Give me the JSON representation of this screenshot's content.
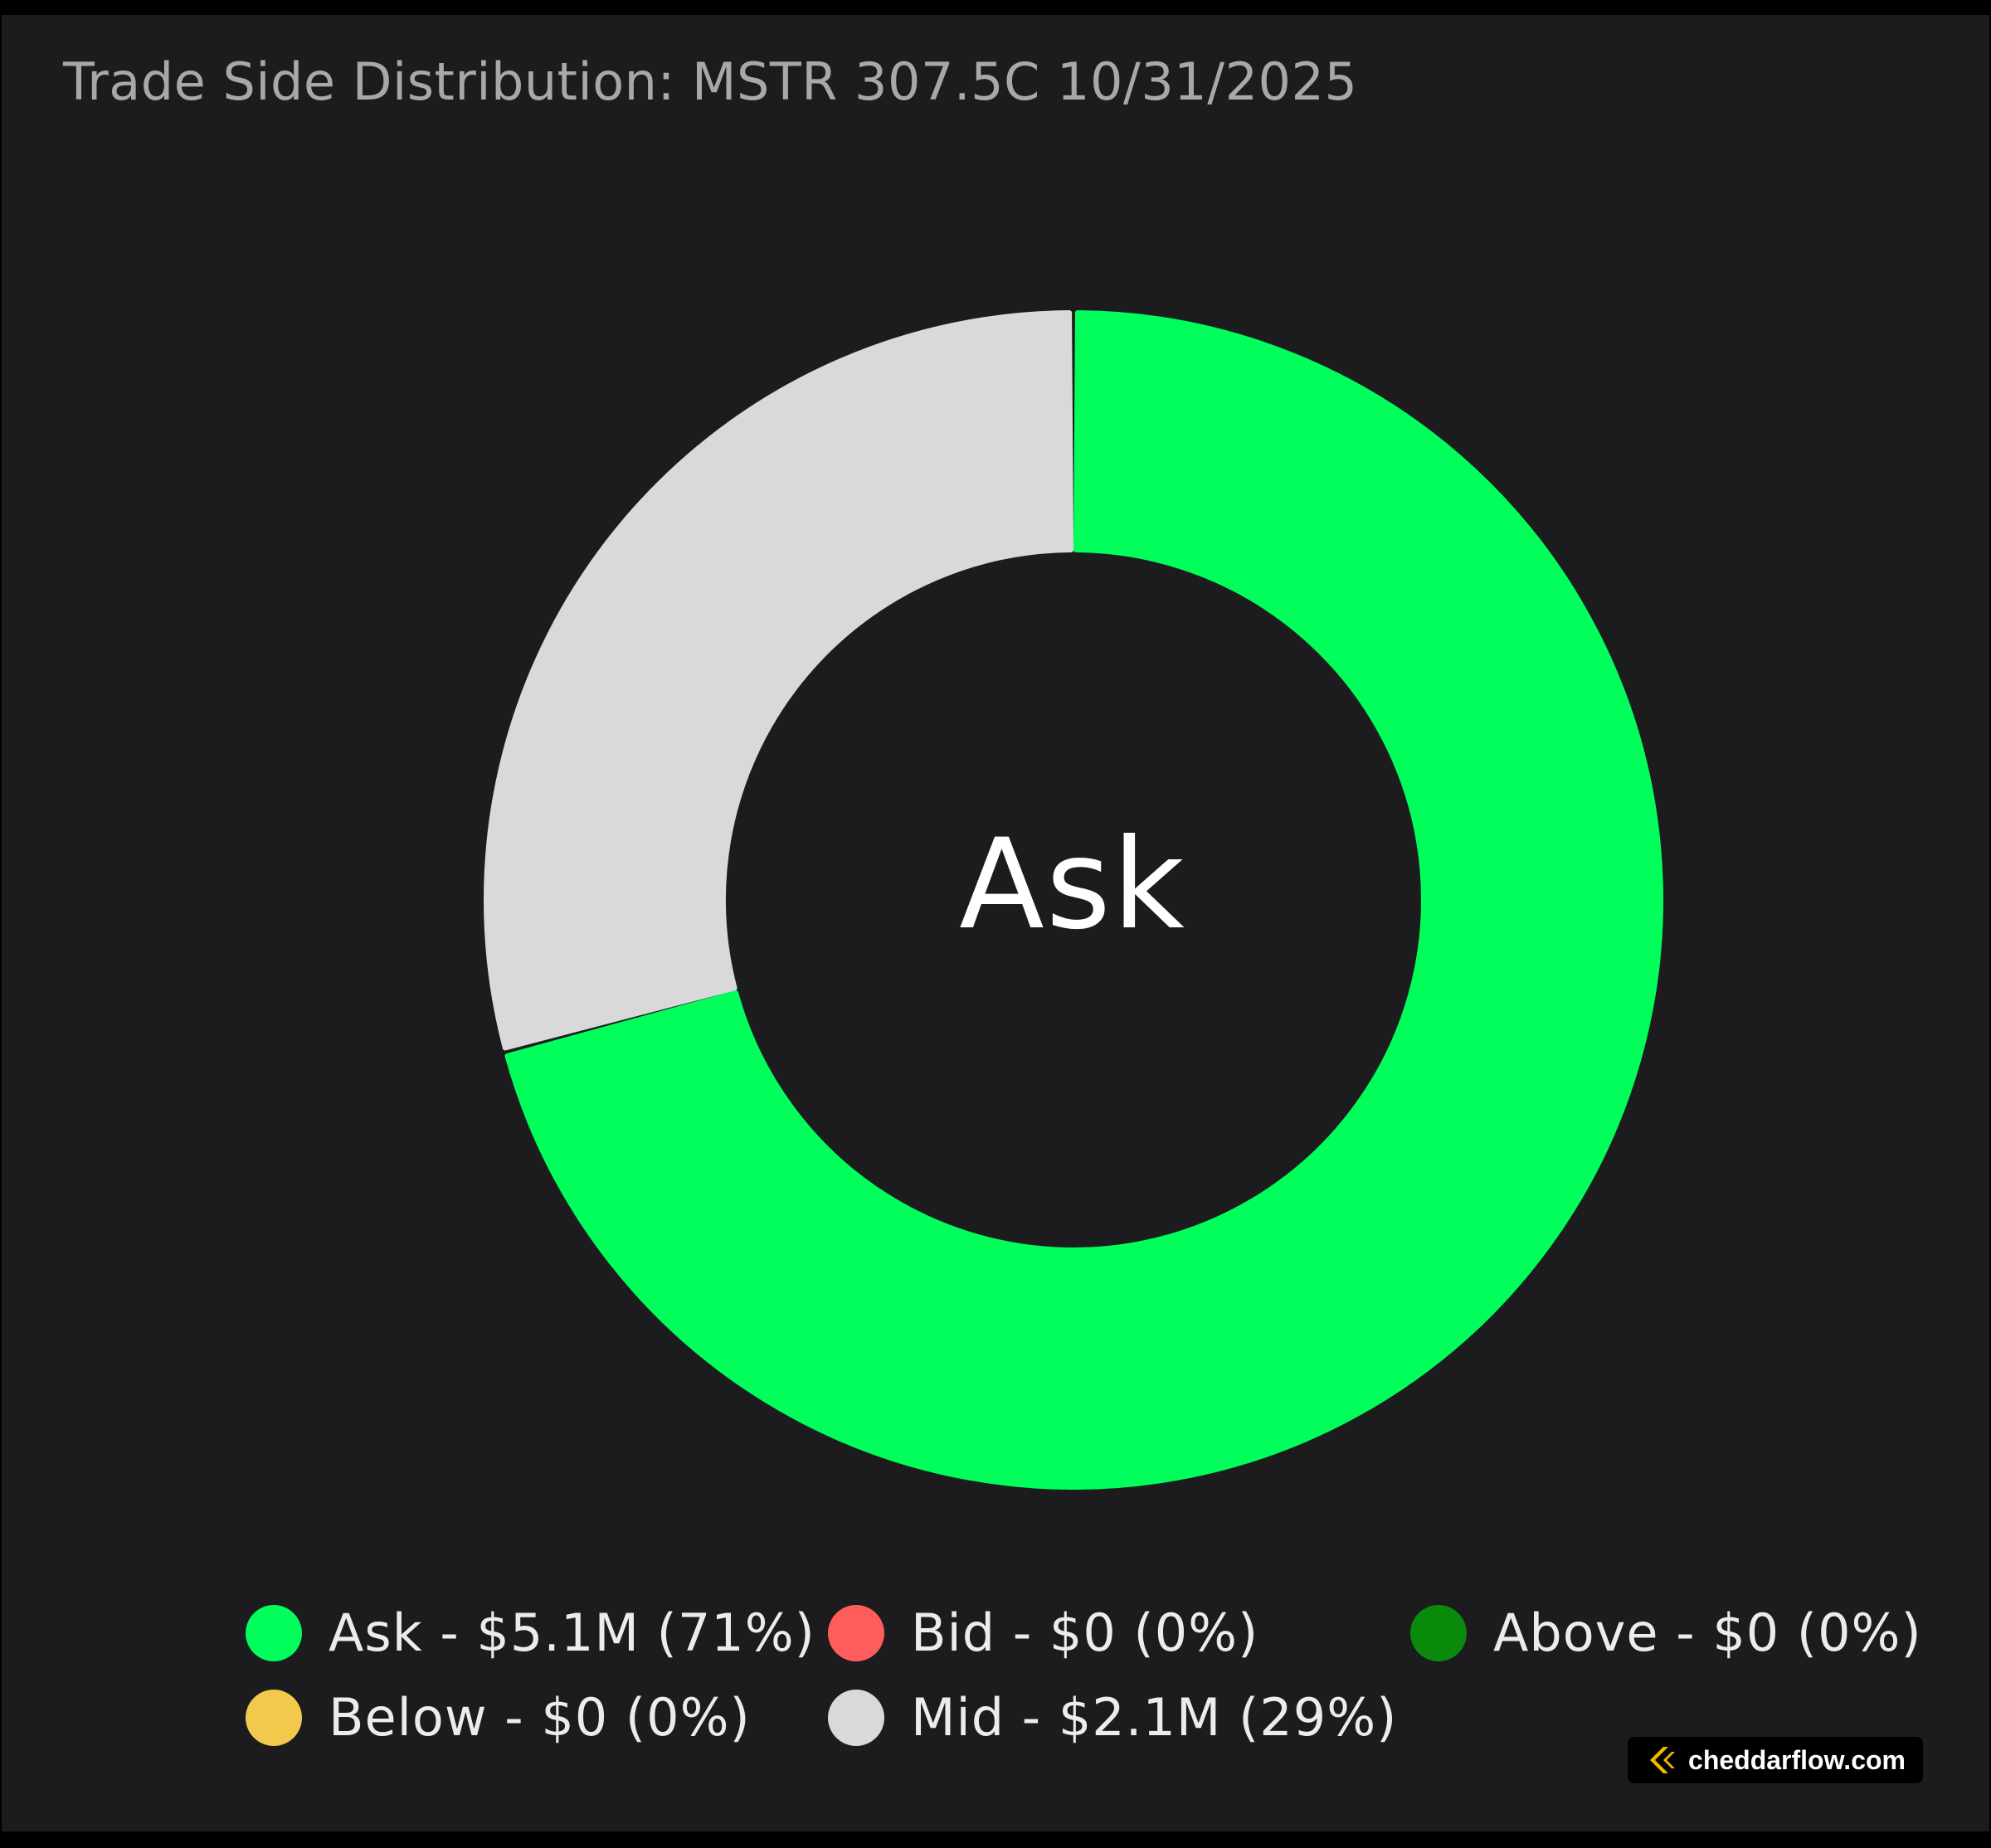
{
  "chart_data": {
    "type": "pie",
    "title": "Trade Side Distribution: MSTR 307.5C 10/31/2025",
    "center_label": "Ask",
    "legend_position": "bottom",
    "slices": [
      {
        "name": "Ask",
        "value": 5.1,
        "percent": 71,
        "color": "#00ff5a",
        "legend": "Ask - $5.1M (71%)"
      },
      {
        "name": "Bid",
        "value": 0,
        "percent": 0,
        "color": "#ff5c5c",
        "legend": "Bid - $0 (0%)"
      },
      {
        "name": "Above",
        "value": 0,
        "percent": 0,
        "color": "#0a8a0a",
        "legend": "Above - $0 (0%)"
      },
      {
        "name": "Below",
        "value": 0,
        "percent": 0,
        "color": "#f2c94c",
        "legend": "Below - $0 (0%)"
      },
      {
        "name": "Mid",
        "value": 2.1,
        "percent": 29,
        "color": "#d9d9d9",
        "legend": "Mid - $2.1M (29%)"
      }
    ]
  },
  "brand": {
    "text": "cheddarflow.com",
    "icon": "cheddarflow-logo-icon",
    "icon_color": "#f5b800"
  }
}
